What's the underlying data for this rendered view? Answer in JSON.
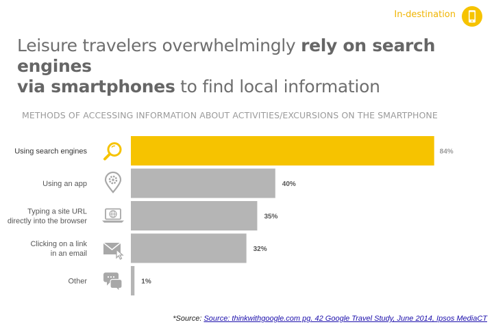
{
  "header": {
    "badge_label": "In-destination",
    "badge_icon": "smartphone-icon"
  },
  "title": {
    "part1": "Leisure travelers overwhelmingly ",
    "bold1": "rely on search engines",
    "bold2": "via smartphones",
    "part2": " to find local information"
  },
  "chart_data": {
    "type": "bar",
    "orientation": "horizontal",
    "title": "METHODS OF ACCESSING INFORMATION ABOUT ACTIVITIES/EXCURSIONS ON THE SMARTPHONE",
    "categories": [
      [
        "Using search engines"
      ],
      [
        "Using an app"
      ],
      [
        "Typing a site URL",
        "directly into the browser"
      ],
      [
        "Clicking on a link",
        "in an email"
      ],
      [
        "Other"
      ]
    ],
    "values": [
      84,
      40,
      35,
      32,
      1
    ],
    "value_labels": [
      "84%",
      "40%",
      "35%",
      "32%",
      "1%"
    ],
    "icons": [
      "magnifier-icon",
      "map-pin-gear-icon",
      "laptop-globe-icon",
      "email-click-icon",
      "chat-bubbles-icon"
    ],
    "highlight_index": 0,
    "colors": {
      "highlight": "#f6c300",
      "default": "#b5b5b5",
      "icon": "#a8a8a8",
      "label": "#555555"
    },
    "xlim": [
      0,
      100
    ],
    "grid": false
  },
  "footer": {
    "source_prefix": "*Source: ",
    "source_link": "Source: thinkwithgoogle.com pg. 42 Google Travel Study, June 2014, Ipsos MediaCT"
  }
}
